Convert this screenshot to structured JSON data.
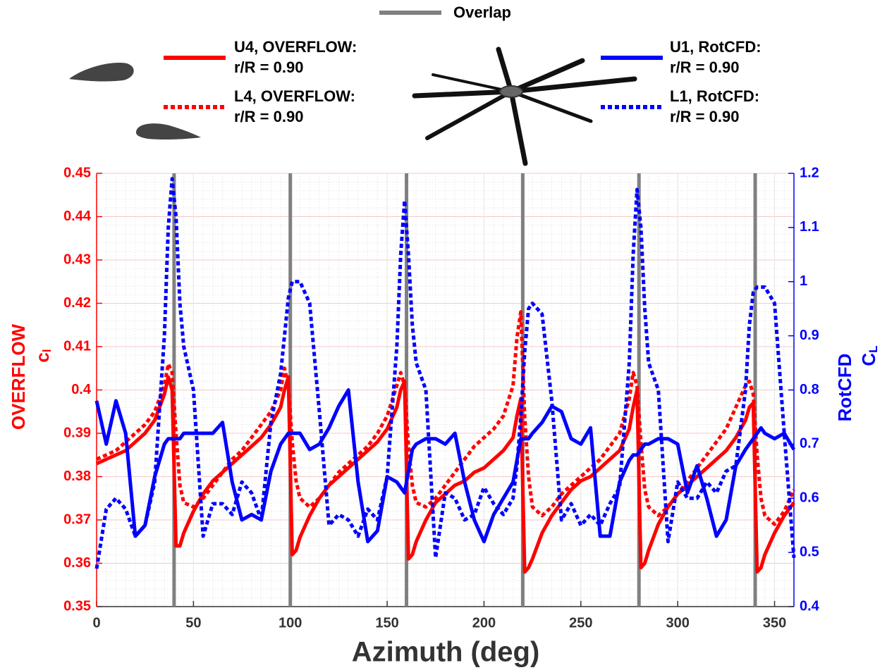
{
  "chart_data": {
    "type": "line",
    "xlabel": "Azimuth (deg)",
    "ylabel": "OVERFLOW",
    "ylabel_symbol": "c",
    "ylabel_subscript": "l",
    "y2label": "RotCFD",
    "y2label_symbol": "C",
    "y2label_subscript": "L",
    "xlim": [
      0,
      360
    ],
    "xticks": [
      0,
      50,
      100,
      150,
      200,
      250,
      300,
      350
    ],
    "ylim": [
      0.35,
      0.45
    ],
    "yticks": [
      0.35,
      0.36,
      0.37,
      0.38,
      0.39,
      0.4,
      0.41,
      0.42,
      0.43,
      0.44,
      0.45
    ],
    "y2lim": [
      0.4,
      1.2
    ],
    "y2ticks": [
      0.4,
      0.5,
      0.6,
      0.7,
      0.8,
      0.9,
      1,
      1.1,
      1.2
    ],
    "grid": true,
    "overlap": {
      "name": "Overlap",
      "color": "#808080",
      "x": [
        40,
        100,
        160,
        220,
        280,
        340
      ]
    },
    "x": [
      0,
      5,
      10,
      15,
      20,
      25,
      30,
      35,
      37,
      39,
      41,
      43,
      45,
      50,
      55,
      60,
      65,
      70,
      75,
      80,
      85,
      90,
      95,
      97,
      99,
      101,
      103,
      105,
      110,
      115,
      120,
      125,
      130,
      135,
      140,
      145,
      150,
      155,
      157,
      159,
      161,
      163,
      165,
      170,
      175,
      180,
      185,
      190,
      195,
      200,
      205,
      210,
      215,
      217,
      219,
      221,
      223,
      225,
      230,
      235,
      240,
      245,
      250,
      255,
      260,
      265,
      270,
      275,
      277,
      279,
      281,
      283,
      285,
      290,
      295,
      300,
      305,
      310,
      315,
      320,
      325,
      330,
      335,
      337,
      339,
      341,
      343,
      345,
      350,
      355,
      360
    ],
    "series": [
      {
        "name": "U4, OVERFLOW: r/R = 0.90",
        "color": "#ff0000",
        "linestyle": "solid",
        "axis": "y",
        "values": [
          0.383,
          0.384,
          0.385,
          0.386,
          0.388,
          0.39,
          0.393,
          0.399,
          0.403,
          0.4,
          0.364,
          0.364,
          0.367,
          0.372,
          0.376,
          0.379,
          0.381,
          0.383,
          0.385,
          0.387,
          0.389,
          0.392,
          0.396,
          0.4,
          0.403,
          0.362,
          0.363,
          0.366,
          0.371,
          0.375,
          0.378,
          0.38,
          0.382,
          0.384,
          0.386,
          0.388,
          0.391,
          0.396,
          0.4,
          0.402,
          0.361,
          0.362,
          0.365,
          0.37,
          0.374,
          0.376,
          0.378,
          0.379,
          0.381,
          0.382,
          0.384,
          0.386,
          0.389,
          0.394,
          0.398,
          0.358,
          0.359,
          0.361,
          0.367,
          0.371,
          0.374,
          0.377,
          0.379,
          0.38,
          0.382,
          0.384,
          0.386,
          0.391,
          0.396,
          0.4,
          0.359,
          0.36,
          0.363,
          0.369,
          0.373,
          0.376,
          0.378,
          0.38,
          0.382,
          0.384,
          0.386,
          0.389,
          0.393,
          0.396,
          0.397,
          0.358,
          0.359,
          0.362,
          0.367,
          0.371,
          0.374
        ]
      },
      {
        "name": "L4, OVERFLOW: r/R = 0.90",
        "color": "#ff0000",
        "linestyle": "dotted",
        "axis": "y",
        "values": [
          0.384,
          0.385,
          0.386,
          0.388,
          0.39,
          0.392,
          0.395,
          0.401,
          0.406,
          0.404,
          0.39,
          0.378,
          0.374,
          0.373,
          0.375,
          0.378,
          0.381,
          0.384,
          0.386,
          0.389,
          0.392,
          0.395,
          0.4,
          0.405,
          0.401,
          0.388,
          0.379,
          0.375,
          0.373,
          0.375,
          0.378,
          0.381,
          0.383,
          0.385,
          0.387,
          0.39,
          0.394,
          0.401,
          0.404,
          0.401,
          0.387,
          0.378,
          0.374,
          0.373,
          0.375,
          0.378,
          0.381,
          0.384,
          0.387,
          0.389,
          0.391,
          0.394,
          0.401,
          0.412,
          0.418,
          0.394,
          0.38,
          0.373,
          0.371,
          0.373,
          0.376,
          0.378,
          0.38,
          0.382,
          0.384,
          0.387,
          0.39,
          0.398,
          0.404,
          0.401,
          0.388,
          0.377,
          0.373,
          0.371,
          0.373,
          0.376,
          0.379,
          0.382,
          0.385,
          0.388,
          0.391,
          0.396,
          0.401,
          0.402,
          0.399,
          0.385,
          0.375,
          0.371,
          0.369,
          0.372,
          0.377
        ]
      },
      {
        "name": "U1, RotCFD: r/R = 0.90",
        "color": "#0000ff",
        "linestyle": "solid",
        "axis": "y2",
        "values": [
          0.78,
          0.7,
          0.78,
          0.72,
          0.53,
          0.55,
          0.64,
          0.7,
          0.71,
          0.71,
          0.71,
          0.71,
          0.72,
          0.72,
          0.72,
          0.72,
          0.74,
          0.63,
          0.56,
          0.57,
          0.56,
          0.65,
          0.7,
          0.71,
          0.72,
          0.72,
          0.72,
          0.72,
          0.69,
          0.7,
          0.73,
          0.77,
          0.8,
          0.63,
          0.52,
          0.54,
          0.64,
          0.63,
          0.62,
          0.61,
          0.65,
          0.69,
          0.7,
          0.71,
          0.71,
          0.7,
          0.72,
          0.63,
          0.56,
          0.52,
          0.57,
          0.6,
          0.63,
          0.67,
          0.71,
          0.71,
          0.71,
          0.72,
          0.74,
          0.77,
          0.76,
          0.71,
          0.7,
          0.73,
          0.53,
          0.53,
          0.63,
          0.67,
          0.68,
          0.68,
          0.69,
          0.7,
          0.7,
          0.71,
          0.71,
          0.7,
          0.61,
          0.66,
          0.6,
          0.53,
          0.56,
          0.66,
          0.69,
          0.7,
          0.71,
          0.72,
          0.73,
          0.72,
          0.71,
          0.72,
          0.69
        ]
      },
      {
        "name": "L1, RotCFD: r/R = 0.90",
        "color": "#0000ff",
        "linestyle": "dotted",
        "axis": "y2",
        "values": [
          0.47,
          0.58,
          0.6,
          0.58,
          0.53,
          0.55,
          0.63,
          0.9,
          1.1,
          1.19,
          1.12,
          0.96,
          0.88,
          0.8,
          0.53,
          0.59,
          0.59,
          0.57,
          0.63,
          0.61,
          0.56,
          0.74,
          0.83,
          0.9,
          0.97,
          1.0,
          1.0,
          1.0,
          0.96,
          0.76,
          0.55,
          0.57,
          0.56,
          0.53,
          0.58,
          0.56,
          0.64,
          0.88,
          1.05,
          1.15,
          1.05,
          0.92,
          0.85,
          0.8,
          0.49,
          0.61,
          0.6,
          0.56,
          0.57,
          0.62,
          0.59,
          0.57,
          0.6,
          0.66,
          0.75,
          0.87,
          0.95,
          0.96,
          0.94,
          0.78,
          0.56,
          0.59,
          0.55,
          0.57,
          0.55,
          0.59,
          0.62,
          0.85,
          1.05,
          1.17,
          1.1,
          0.95,
          0.85,
          0.8,
          0.52,
          0.63,
          0.6,
          0.6,
          0.63,
          0.61,
          0.65,
          0.66,
          0.8,
          0.92,
          0.98,
          0.99,
          0.99,
          0.99,
          0.96,
          0.72,
          0.49
        ]
      }
    ]
  }
}
